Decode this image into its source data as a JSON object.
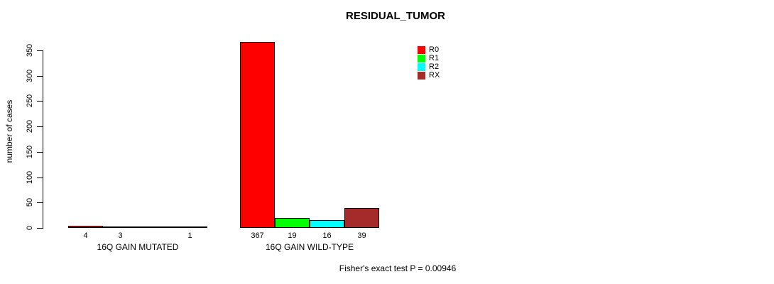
{
  "chart_data": {
    "type": "bar",
    "title": "RESIDUAL_TUMOR",
    "ylabel": "number of cases",
    "xlabel": "",
    "ylim": [
      0,
      350
    ],
    "yticks": [
      0,
      50,
      100,
      150,
      200,
      250,
      300,
      350
    ],
    "grid": false,
    "legend_position": "top-right",
    "categories": [
      "16Q GAIN MUTATED",
      "16Q GAIN WILD-TYPE"
    ],
    "series": [
      {
        "name": "R0",
        "color": "#FF0000",
        "values": [
          4,
          367
        ]
      },
      {
        "name": "R1",
        "color": "#00FF00",
        "values": [
          3,
          19
        ]
      },
      {
        "name": "R2",
        "color": "#00FFFF",
        "values": [
          0,
          16
        ]
      },
      {
        "name": "RX",
        "color": "#A52A2A",
        "values": [
          1,
          39
        ]
      }
    ],
    "bar_value_labels": [
      [
        "4",
        "3",
        "",
        "1"
      ],
      [
        "367",
        "19",
        "16",
        "39"
      ]
    ],
    "annotation": "Fisher's exact test P = 0.00946"
  },
  "colors": {
    "axis": "#000000",
    "text": "#000000",
    "background": "#FFFFFF",
    "accent_red": "#FF0000",
    "accent_green": "#00FF00",
    "accent_cyan": "#00FFFF",
    "accent_brown": "#A52A2A"
  }
}
